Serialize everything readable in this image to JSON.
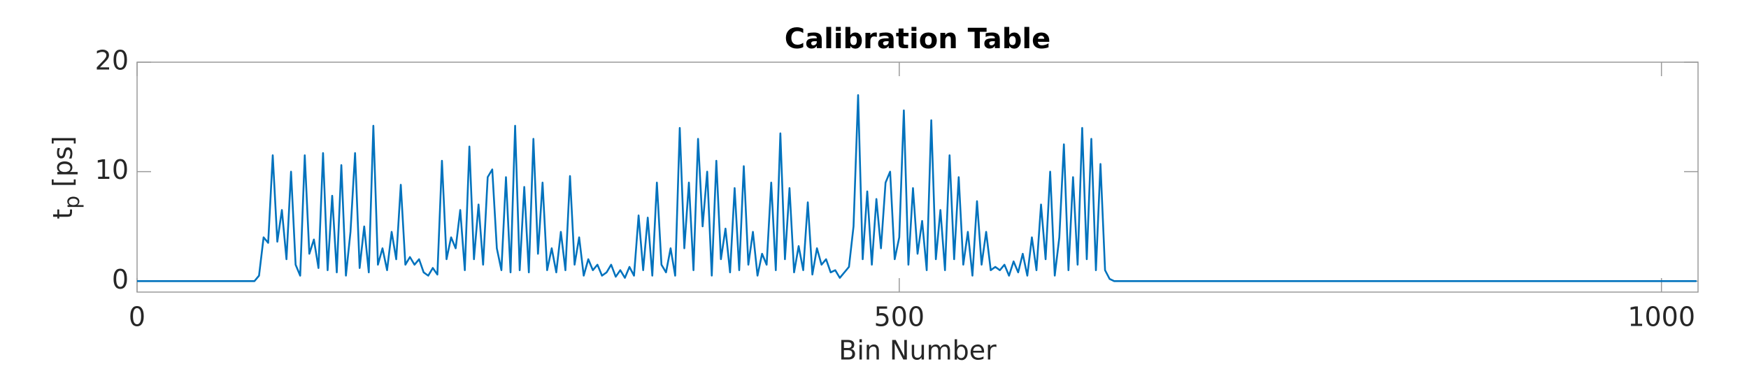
{
  "chart_data": {
    "type": "line",
    "title": "Calibration Table",
    "xlabel": "Bin Number",
    "ylabel": "t",
    "ylabel_subscript": "p",
    "ylabel_suffix": "[ps]",
    "color": "#0072bd",
    "xlim": [
      0,
      1024
    ],
    "ylim": [
      -1,
      20
    ],
    "xticks": [
      0,
      500,
      1000
    ],
    "yticks": [
      0,
      10,
      20
    ],
    "x": [
      0,
      77,
      80,
      83,
      86,
      89,
      92,
      95,
      98,
      101,
      104,
      107,
      110,
      113,
      116,
      119,
      122,
      125,
      128,
      131,
      134,
      137,
      140,
      143,
      146,
      149,
      152,
      155,
      158,
      161,
      164,
      167,
      170,
      173,
      176,
      179,
      182,
      185,
      188,
      191,
      194,
      197,
      200,
      203,
      206,
      209,
      212,
      215,
      218,
      221,
      224,
      227,
      230,
      233,
      236,
      239,
      242,
      245,
      248,
      251,
      254,
      257,
      260,
      263,
      266,
      269,
      272,
      275,
      278,
      281,
      284,
      287,
      290,
      293,
      296,
      299,
      302,
      305,
      308,
      311,
      314,
      317,
      320,
      323,
      326,
      329,
      332,
      335,
      338,
      341,
      344,
      347,
      350,
      353,
      356,
      359,
      362,
      365,
      368,
      371,
      374,
      377,
      380,
      383,
      386,
      389,
      392,
      395,
      398,
      401,
      404,
      407,
      410,
      413,
      416,
      419,
      422,
      425,
      428,
      431,
      434,
      437,
      440,
      443,
      446,
      449,
      452,
      455,
      458,
      461,
      464,
      467,
      470,
      473,
      476,
      479,
      482,
      485,
      488,
      491,
      494,
      497,
      500,
      503,
      506,
      509,
      512,
      515,
      518,
      521,
      524,
      527,
      530,
      533,
      536,
      539,
      542,
      545,
      548,
      551,
      554,
      557,
      560,
      563,
      566,
      569,
      572,
      575,
      578,
      581,
      584,
      587,
      590,
      593,
      596,
      599,
      602,
      605,
      608,
      611,
      614,
      617,
      620,
      623,
      626,
      629,
      632,
      635,
      638,
      641,
      1023
    ],
    "values": [
      0,
      0,
      0.5,
      4,
      3.5,
      11.5,
      3.6,
      6.5,
      2,
      10,
      1.5,
      0.5,
      11.5,
      2.5,
      3.8,
      1.2,
      11.7,
      1,
      7.8,
      0.8,
      10.6,
      0.5,
      4.5,
      11.7,
      1.2,
      5,
      0.8,
      14.2,
      1.5,
      3,
      1,
      4.5,
      2,
      8.8,
      1.5,
      2.2,
      1.5,
      2,
      0.8,
      0.5,
      1.2,
      0.6,
      11,
      2,
      4,
      3,
      6.5,
      1,
      12.3,
      2,
      7,
      1.5,
      9.5,
      10.2,
      3,
      1,
      9.5,
      0.8,
      14.2,
      1,
      8.6,
      0.8,
      13,
      2.5,
      9,
      1,
      3,
      0.8,
      4.5,
      1,
      9.6,
      1.5,
      4,
      0.5,
      2,
      1,
      1.5,
      0.5,
      0.8,
      1.5,
      0.4,
      1,
      0.3,
      1.3,
      0.5,
      6,
      1,
      5.8,
      0.5,
      9,
      1.5,
      0.8,
      3,
      0.5,
      14,
      3,
      9,
      1,
      13,
      5,
      10,
      0.5,
      11,
      2,
      4.8,
      0.8,
      8.5,
      1,
      10.5,
      1.5,
      4.5,
      0.5,
      2.5,
      1.5,
      9,
      1,
      13.5,
      2,
      8.5,
      0.8,
      3.2,
      1,
      7.2,
      0.6,
      3,
      1.5,
      2,
      0.8,
      1,
      0.3,
      0.8,
      1.3,
      5,
      17,
      2,
      8.2,
      1.5,
      7.5,
      3,
      9,
      10,
      2,
      4,
      15.6,
      1.5,
      8.5,
      2.5,
      5.5,
      1,
      14.7,
      2,
      6.5,
      1,
      11.5,
      2,
      9.5,
      1.5,
      4.5,
      0.5,
      7.3,
      1.5,
      4.5,
      1,
      1.3,
      1,
      1.5,
      0.5,
      1.8,
      0.8,
      2.5,
      0.5,
      4,
      1,
      7,
      2,
      10,
      0.5,
      4,
      12.5,
      1,
      9.5,
      1.5,
      14,
      2,
      13,
      1,
      10.7,
      1,
      0.2,
      0,
      0
    ]
  }
}
